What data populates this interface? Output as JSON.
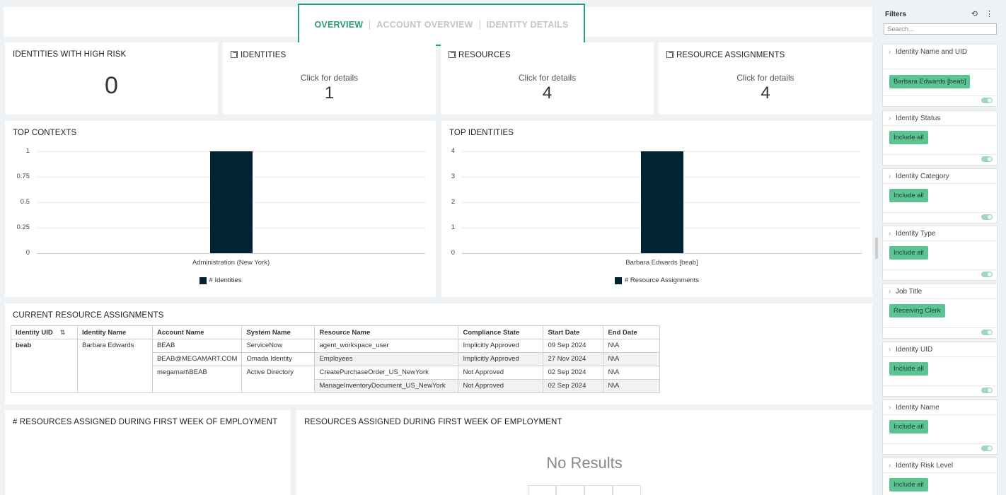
{
  "tabs": [
    {
      "label": "OVERVIEW",
      "active": true
    },
    {
      "label": "ACCOUNT OVERVIEW",
      "active": false
    },
    {
      "label": "IDENTITY DETAILS",
      "active": false
    }
  ],
  "kpis": {
    "high_risk": {
      "title": "IDENTITIES WITH HIGH RISK",
      "value": "0"
    },
    "identities": {
      "title": "IDENTITIES",
      "sub": "Click for details",
      "value": "1"
    },
    "resources": {
      "title": "RESOURCES",
      "sub": "Click for details",
      "value": "4"
    },
    "assignments": {
      "title": "RESOURCE ASSIGNMENTS",
      "sub": "Click for details",
      "value": "4"
    }
  },
  "chart_data": [
    {
      "type": "bar",
      "title": "TOP CONTEXTS",
      "categories": [
        "Administration (New York)"
      ],
      "series": [
        {
          "name": "# Identities",
          "values": [
            1
          ]
        }
      ],
      "yticks": [
        "1",
        "0.75",
        "0.5",
        "0.25",
        "0"
      ],
      "ylim": [
        0,
        1
      ],
      "grid": true,
      "legend_position": "bottom",
      "color": "#012332"
    },
    {
      "type": "bar",
      "title": "TOP IDENTITIES",
      "categories": [
        "Barbara Edwards [beab]"
      ],
      "series": [
        {
          "name": "# Resource Assignments",
          "values": [
            4
          ]
        }
      ],
      "yticks": [
        "4",
        "3",
        "2",
        "1",
        "0"
      ],
      "ylim": [
        0,
        4
      ],
      "grid": true,
      "legend_position": "bottom",
      "color": "#012332"
    }
  ],
  "assignments_table": {
    "title": "CURRENT RESOURCE ASSIGNMENTS",
    "columns": [
      "Identity UID",
      "Identity Name",
      "Account Name",
      "System Name",
      "Resource Name",
      "Compliance State",
      "Start Date",
      "End Date"
    ],
    "identity_uid": "beab",
    "identity_name": "Barbara Edwards",
    "accounts": [
      {
        "account": "BEAB",
        "system": "ServiceNow"
      },
      {
        "account": "BEAB@MEGAMART.COM",
        "system": "Omada Identity"
      },
      {
        "account": "megamart\\BEAB",
        "system": "Active Directory"
      }
    ],
    "rows": [
      {
        "resource": "agent_workspace_user",
        "compliance": "Implicitly Approved",
        "start": "09 Sep 2024",
        "end": "N\\A"
      },
      {
        "resource": "Employees",
        "compliance": "Implicitly Approved",
        "start": "27 Nov 2024",
        "end": "N\\A"
      },
      {
        "resource": "CreatePurchaseOrder_US_NewYork",
        "compliance": "Not Approved",
        "start": "02 Sep 2024",
        "end": "N\\A"
      },
      {
        "resource": "ManageInventoryDocument_US_NewYork",
        "compliance": "Not Approved",
        "start": "02 Sep 2024",
        "end": "N\\A"
      }
    ]
  },
  "bottom": {
    "left_title": "# RESOURCES ASSIGNED DURING FIRST WEEK OF EMPLOYMENT",
    "right_title": "RESOURCES ASSIGNED DURING FIRST WEEK OF EMPLOYMENT",
    "no_results": "No Results"
  },
  "filters": {
    "title": "Filters",
    "search_placeholder": "Search...",
    "items": [
      {
        "name": "Identity Name and UID",
        "chip": "Barbara Edwards [beab]"
      },
      {
        "name": "Identity Status",
        "chip": "Include all"
      },
      {
        "name": "Identity Category",
        "chip": "Include all"
      },
      {
        "name": "Identity Type",
        "chip": "Include all"
      },
      {
        "name": "Job Title",
        "chip": "Receiving Clerk"
      },
      {
        "name": "Identity UID",
        "chip": "Include all"
      },
      {
        "name": "Identity Name",
        "chip": "Include all"
      },
      {
        "name": "Identity Risk Level",
        "chip": "Include all"
      }
    ]
  }
}
